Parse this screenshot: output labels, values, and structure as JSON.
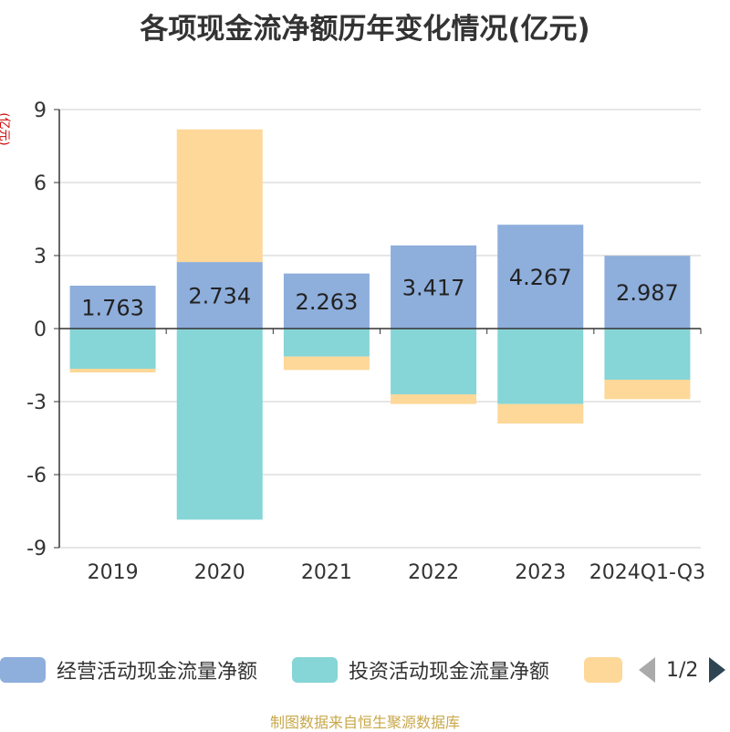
{
  "title": "各项现金流净额历年变化情况(亿元)",
  "unit_label": "(亿元)",
  "legend": {
    "items": [
      {
        "label": "经营活动现金流量净额",
        "color": "#8eaedc"
      },
      {
        "label": "投资活动现金流量净额",
        "color": "#86d5d7"
      },
      {
        "label": "",
        "color": "#fdd898"
      }
    ],
    "page_text": "1/2"
  },
  "source": "制图数据来自恒生聚源数据库",
  "colors": {
    "title": "#333333",
    "unit": "#cc0000",
    "source": "#c8a84a",
    "axis": "#333333",
    "grid": "#cccccc"
  },
  "chart_data": {
    "type": "bar",
    "stacked": true,
    "categories": [
      "2019",
      "2020",
      "2021",
      "2022",
      "2023",
      "2024Q1-Q3"
    ],
    "ylim": [
      -9,
      9
    ],
    "yticks": [
      -9,
      -6,
      -3,
      0,
      3,
      6,
      9
    ],
    "ylabel": "(亿元)",
    "grid": true,
    "legend_position": "bottom",
    "series": [
      {
        "name": "经营活动现金流量净额",
        "color": "#8eaedc",
        "values": [
          1.763,
          2.734,
          2.263,
          3.417,
          4.267,
          2.987
        ],
        "labels": [
          "1.763",
          "2.734",
          "2.263",
          "3.417",
          "4.267",
          "2.987"
        ]
      },
      {
        "name": "投资活动现金流量净额",
        "color": "#86d5d7",
        "values": [
          -1.65,
          -7.85,
          -1.15,
          -2.7,
          -3.1,
          -2.1
        ]
      },
      {
        "color": "#fdd898",
        "values": [
          -0.15,
          5.45,
          -0.55,
          -0.4,
          -0.8,
          -0.8
        ]
      }
    ]
  }
}
